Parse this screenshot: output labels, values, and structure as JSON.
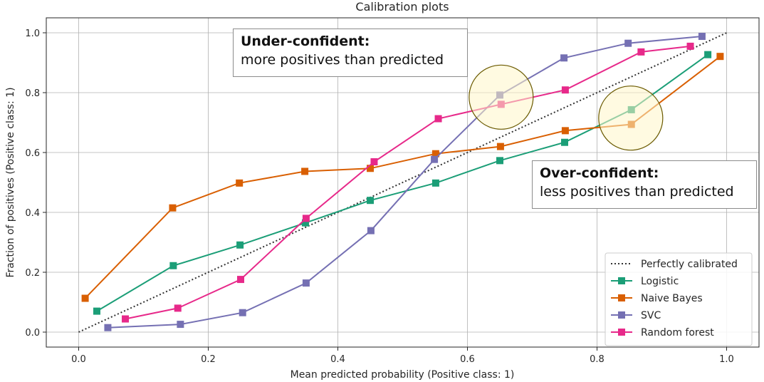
{
  "chart_data": {
    "type": "line",
    "title": "Calibration plots",
    "xlabel": "Mean predicted probability (Positive class: 1)",
    "ylabel": "Fraction of positives (Positive class: 1)",
    "xlim": [
      -0.05,
      1.05
    ],
    "ylim": [
      -0.05,
      1.05
    ],
    "xticks": [
      "0.0",
      "0.2",
      "0.4",
      "0.6",
      "0.8",
      "1.0"
    ],
    "yticks": [
      "0.0",
      "0.2",
      "0.4",
      "0.6",
      "0.8",
      "1.0"
    ],
    "grid": true,
    "legend_position": "lower-right",
    "reference": {
      "name": "Perfectly calibrated",
      "x": [
        0.0,
        1.0
      ],
      "y": [
        0.0,
        1.0
      ],
      "color": "#333333",
      "style": "dotted"
    },
    "series": [
      {
        "name": "Logistic",
        "color": "#1b9e77",
        "x": [
          0.028,
          0.146,
          0.249,
          0.35,
          0.45,
          0.551,
          0.65,
          0.75,
          0.853,
          0.971
        ],
        "y": [
          0.07,
          0.222,
          0.291,
          0.365,
          0.44,
          0.498,
          0.573,
          0.634,
          0.743,
          0.927
        ]
      },
      {
        "name": "Naive Bayes",
        "color": "#d95f02",
        "x": [
          0.01,
          0.145,
          0.248,
          0.349,
          0.45,
          0.551,
          0.651,
          0.751,
          0.853,
          0.99
        ],
        "y": [
          0.113,
          0.415,
          0.498,
          0.537,
          0.547,
          0.596,
          0.62,
          0.673,
          0.694,
          0.921
        ]
      },
      {
        "name": "SVC",
        "color": "#7570b3",
        "x": [
          0.045,
          0.157,
          0.253,
          0.351,
          0.451,
          0.549,
          0.65,
          0.749,
          0.848,
          0.962
        ],
        "y": [
          0.015,
          0.026,
          0.065,
          0.164,
          0.339,
          0.577,
          0.792,
          0.916,
          0.965,
          0.988
        ]
      },
      {
        "name": "Random forest",
        "color": "#e7298a",
        "x": [
          0.072,
          0.153,
          0.25,
          0.351,
          0.456,
          0.555,
          0.652,
          0.751,
          0.868,
          0.944
        ],
        "y": [
          0.044,
          0.08,
          0.176,
          0.38,
          0.569,
          0.713,
          0.761,
          0.809,
          0.936,
          0.955
        ]
      }
    ],
    "highlights": [
      {
        "name": "under-confident-highlight",
        "x": 0.652,
        "y": 0.785,
        "color": "#fff5c8",
        "stroke": "#6b5a00"
      },
      {
        "name": "over-confident-highlight",
        "x": 0.852,
        "y": 0.715,
        "color": "#fff5c8",
        "stroke": "#6b5a00"
      }
    ],
    "annotations": {
      "under": {
        "title": "Under-confident:",
        "text": "more positives than predicted"
      },
      "over": {
        "title": "Over-confident:",
        "text": "less positives than predicted"
      }
    }
  }
}
